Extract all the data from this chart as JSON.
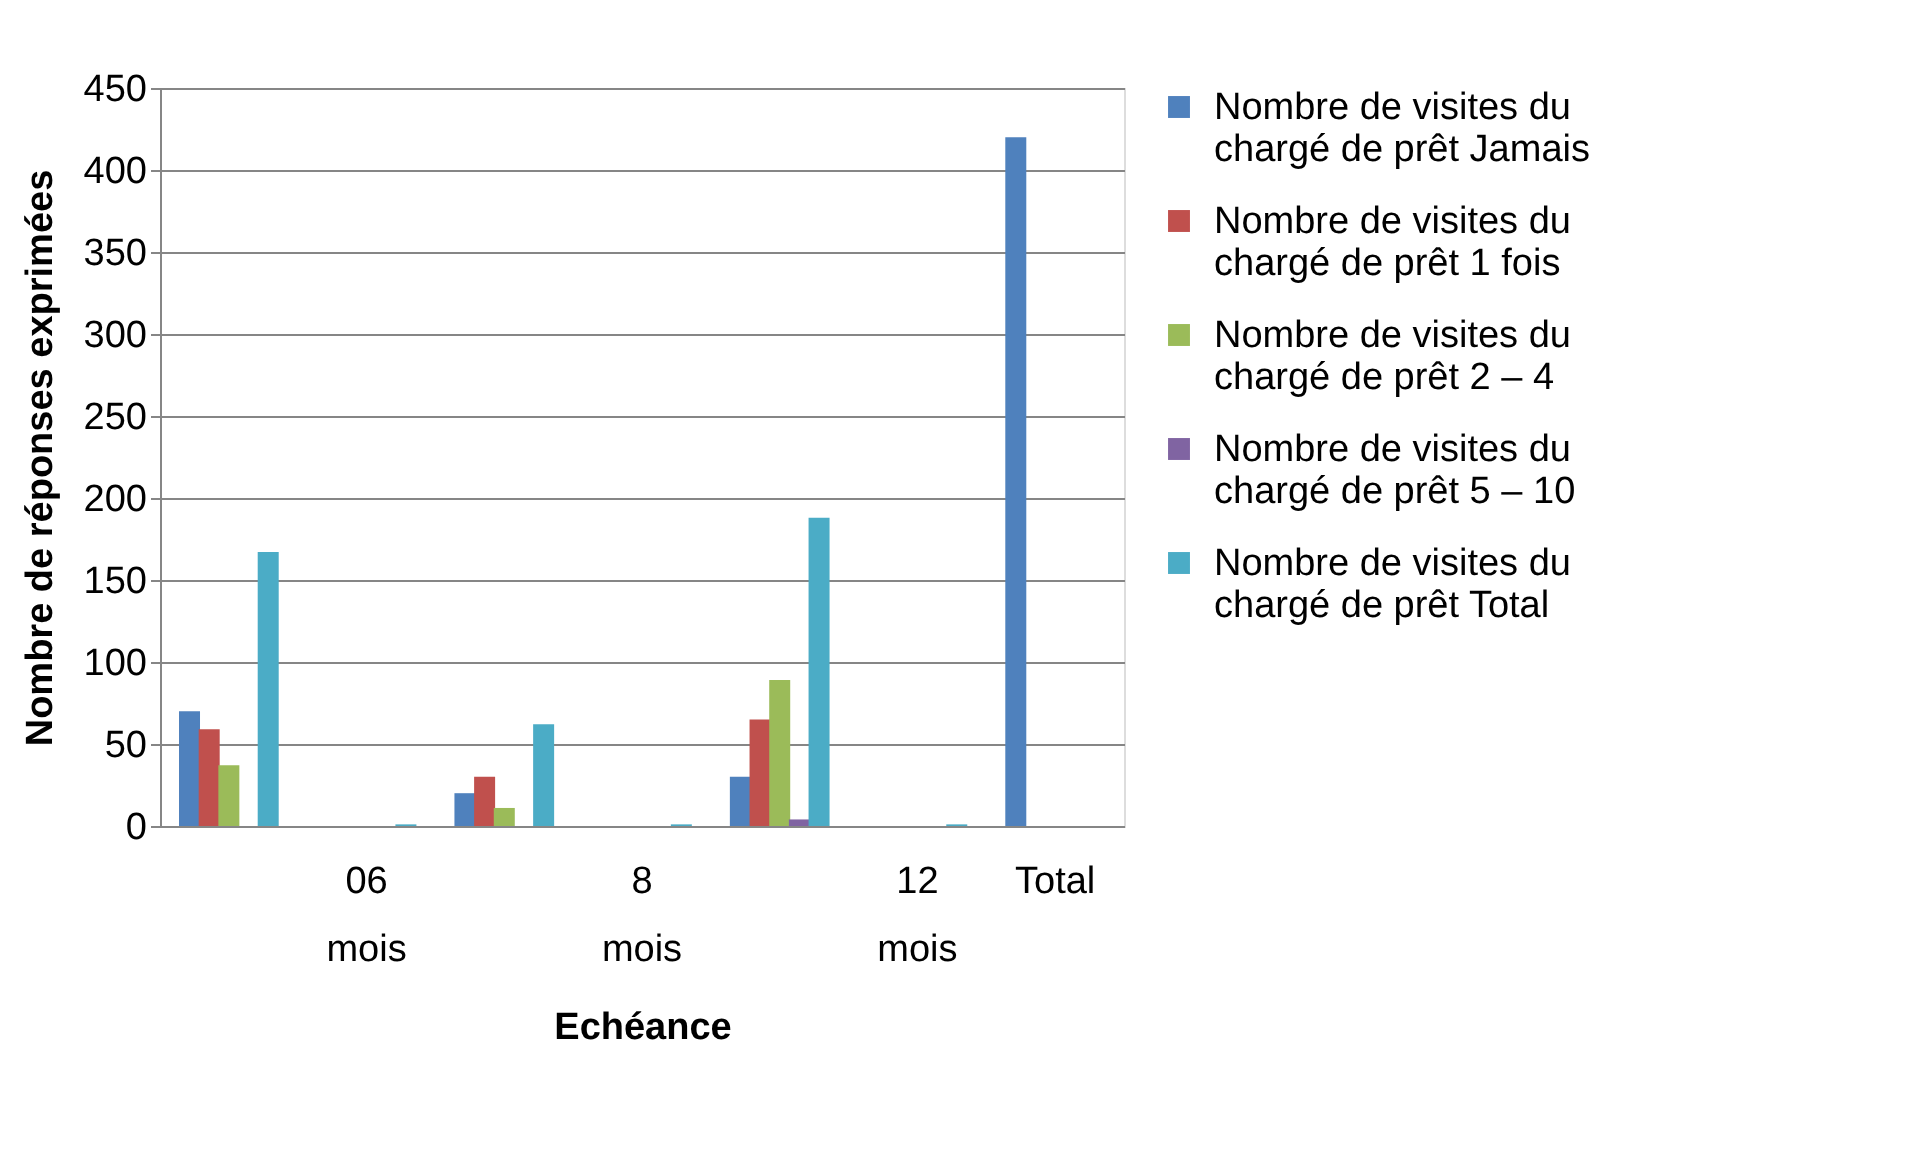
{
  "chart_data": {
    "type": "bar",
    "xlabel": "Echéance",
    "ylabel": "Nombre de réponses exprimées",
    "categories": [
      null,
      "06 mois",
      null,
      "8 mois",
      null,
      "12 mois",
      "Total"
    ],
    "series": [
      {
        "name": "Nombre de visites du chargé de prêt Jamais",
        "color": "#4f81bd",
        "values": [
          70,
          null,
          20,
          null,
          30,
          null,
          420
        ]
      },
      {
        "name": "Nombre de visites du chargé de prêt 1 fois",
        "color": "#c0504d",
        "values": [
          59,
          null,
          30,
          null,
          65,
          null,
          null
        ]
      },
      {
        "name": "Nombre de visites du chargé de prêt 2 – 4",
        "color": "#9bbb59",
        "values": [
          37,
          null,
          11,
          null,
          89,
          null,
          null
        ]
      },
      {
        "name": "Nombre de visites du chargé de prêt 5 – 10",
        "color": "#8064a2",
        "values": [
          null,
          null,
          null,
          null,
          4,
          null,
          null
        ]
      },
      {
        "name": "Nombre de visites du chargé de prêt Total",
        "color": "#4bacc6",
        "values": [
          167,
          1,
          62,
          1,
          188,
          1,
          null
        ]
      }
    ],
    "ylim": [
      0,
      450
    ],
    "yticks": [
      0,
      50,
      100,
      150,
      200,
      250,
      300,
      350,
      400,
      450
    ],
    "grid": "y",
    "legend": "right"
  }
}
